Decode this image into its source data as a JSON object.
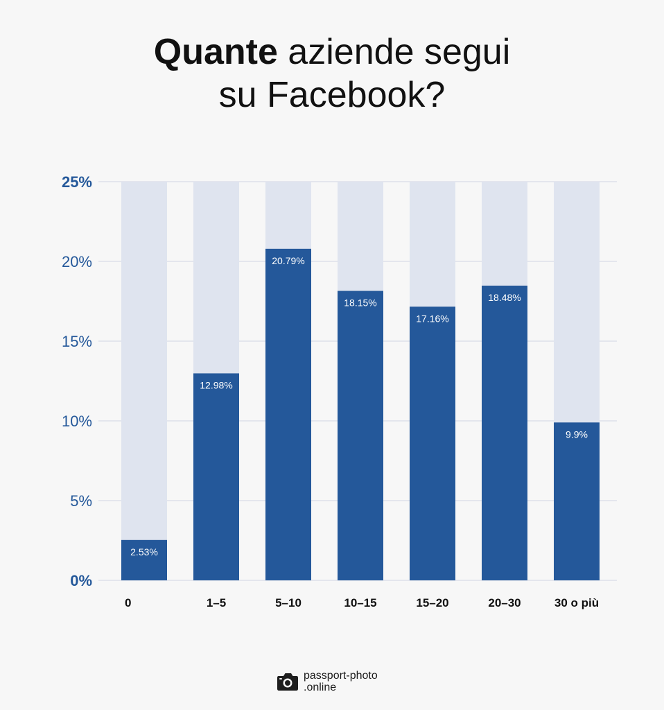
{
  "title": {
    "bold": "Quante",
    "line1_rest": " aziende segui",
    "line2": "su Facebook?"
  },
  "colors": {
    "bar": "#24589a",
    "track": "#dfe4ef",
    "axis_text": "#24589a",
    "category_text": "#111111",
    "gridline": "#dde1ea",
    "background": "#f7f7f7"
  },
  "chart_data": {
    "type": "bar",
    "categories": [
      "0",
      "1–5",
      "5–10",
      "10–15",
      "15–20",
      "20–30",
      "30 o più"
    ],
    "values": [
      2.53,
      12.98,
      20.79,
      18.15,
      17.16,
      18.48,
      9.9
    ],
    "value_labels": [
      "2.53%",
      "12.98%",
      "20.79%",
      "18.15%",
      "17.16%",
      "18.48%",
      "9.9%"
    ],
    "ylim": [
      0,
      25
    ],
    "yticks": [
      0,
      5,
      10,
      15,
      20,
      25
    ],
    "ytick_labels": [
      "0%",
      "5%",
      "10%",
      "15%",
      "20%",
      "25%"
    ],
    "grid": true,
    "legend": "none"
  },
  "footer": {
    "logo_icon": "camera-icon",
    "line1": "passport-photo",
    "line2": ".online"
  }
}
